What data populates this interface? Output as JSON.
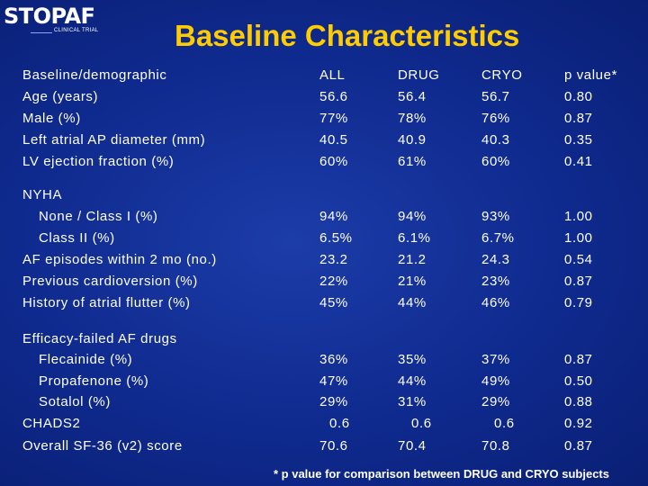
{
  "logo": {
    "main": "STOPAF",
    "sub": "CLINICAL TRIAL"
  },
  "title": "Baseline Characteristics",
  "columns": {
    "label": "Baseline/demographic",
    "all": "ALL",
    "drug": "DRUG",
    "cryo": "CRYO",
    "p": "p value*"
  },
  "rows": [
    {
      "label": "Age (years)",
      "all": "56.6",
      "drug": "56.4",
      "cryo": "56.7",
      "p": "0.80"
    },
    {
      "label": "Male (%)",
      "all": "77%",
      "drug": "78%",
      "cryo": "76%",
      "p": "0.87"
    },
    {
      "label": "Left atrial AP diameter (mm)",
      "all": "40.5",
      "drug": "40.9",
      "cryo": "40.3",
      "p": "0.35"
    },
    {
      "label": "LV ejection fraction (%)",
      "all": "60%",
      "drug": "61%",
      "cryo": "60%",
      "p": "0.41"
    },
    {
      "label": "NYHA"
    },
    {
      "label": "None / Class I (%)",
      "all": "94%",
      "drug": "94%",
      "cryo": "93%",
      "p": "1.00"
    },
    {
      "label": "Class II (%)",
      "all": "6.5%",
      "drug": "6.1%",
      "cryo": "6.7%",
      "p": "1.00"
    },
    {
      "label": "AF episodes within 2 mo (no.)",
      "all": "23.2",
      "drug": "21.2",
      "cryo": "24.3",
      "p": "0.54"
    },
    {
      "label": "Previous cardioversion (%)",
      "all": "22%",
      "drug": "21%",
      "cryo": "23%",
      "p": "0.87"
    },
    {
      "label": "History of atrial flutter (%)",
      "all": "45%",
      "drug": "44%",
      "cryo": "46%",
      "p": "0.79"
    },
    {
      "label": "Efficacy-failed AF drugs"
    },
    {
      "label": "Flecainide (%)",
      "all": "36%",
      "drug": "35%",
      "cryo": "37%",
      "p": "0.87"
    },
    {
      "label": "Propafenone (%)",
      "all": "47%",
      "drug": "44%",
      "cryo": "49%",
      "p": "0.50"
    },
    {
      "label": "Sotalol (%)",
      "all": "29%",
      "drug": "31%",
      "cryo": "29%",
      "p": "0.88"
    },
    {
      "label": "CHADS2",
      "all": "0.6",
      "drug": "0.6",
      "cryo": "0.6",
      "p": "0.92"
    },
    {
      "label": "Overall SF-36 (v2) score",
      "all": "70.6",
      "drug": "70.4",
      "cryo": "70.8",
      "p": "0.87"
    }
  ],
  "footnote": "* p value for comparison between DRUG and CRYO subjects",
  "colors": {
    "background": "#0f2a8e",
    "title": "#ffcc00",
    "text": "#ffffff"
  }
}
